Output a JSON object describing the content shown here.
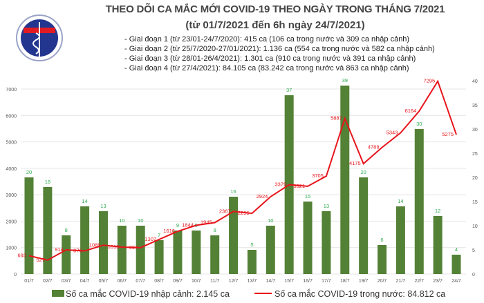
{
  "header": {
    "title": "THEO DÕI CA MẮC MỚI COVID-19 THEO NGÀY TRONG THÁNG 7/2021",
    "subtitle": "(từ 01/7/2021 đến 6h ngày 24/7/2021)",
    "notes": [
      "- Giai đoạn 1 (từ 23/01-24/7/2020): 415 ca (106 ca trong nước và 309 ca nhập cảnh)",
      "- Giai đoạn 2 (từ 25/7/2020-27/01/2021): 1.136 ca (554 ca trong nước và 582 ca nhập cảnh)",
      "- Giai đoạn 3 (từ 28/01-26/4/2021): 1.301 ca (910 ca trong nước và 391 ca nhập cảnh)",
      "- Giai đoạn 4 (từ 27/4/2021): 84.105 ca (83.242 ca trong nước và 863 ca nhập cảnh)"
    ],
    "logo_text": "BỘ Y TẾ - MINISTRY OF HEALTH"
  },
  "chart_data": {
    "type": "bar+line",
    "categories": [
      "01/7",
      "02/7",
      "03/7",
      "04/7",
      "05/7",
      "06/7",
      "07/7",
      "08/7",
      "09/7",
      "10/7",
      "11/7",
      "12/7",
      "13/7",
      "14/7",
      "15/7",
      "16/7",
      "17/7",
      "18/7",
      "19/7",
      "20/7",
      "21/7",
      "22/7",
      "23/7",
      "24/7"
    ],
    "series": [
      {
        "name": "Số ca mắc COVID-19 nhập cảnh: 2.145 ca",
        "type": "bar",
        "axis": "right",
        "color": "#538135",
        "values": [
          20,
          18,
          8,
          14,
          13,
          10,
          10,
          7,
          9,
          9,
          8,
          16,
          5,
          10,
          37,
          15,
          13,
          39,
          20,
          6,
          14,
          30,
          12,
          4
        ]
      },
      {
        "name": "Số ca mắc COVID-19 trong nước: 84.812 ca",
        "type": "line",
        "axis": "left",
        "color": "#e8141b",
        "values": [
          693,
          527,
          914,
          876,
          1089,
          1019,
          997,
          1307,
          1616,
          1844,
          1945,
          2367,
          2296,
          2924,
          3379,
          3321,
          3705,
          5887,
          4175,
          4789,
          5343,
          6164,
          7295,
          5275
        ]
      }
    ],
    "left_axis": {
      "range": [
        0,
        7000
      ],
      "ticks": [
        0,
        1000,
        2000,
        3000,
        4000,
        5000,
        6000,
        7000
      ]
    },
    "right_axis": {
      "range": [
        0,
        40
      ],
      "ticks": [
        0,
        5,
        10,
        15,
        20,
        25,
        30,
        35,
        40
      ]
    },
    "grid": true,
    "legend": "bottom",
    "label_colors": {
      "bar": "#2ea84f",
      "line": "#e8141b"
    }
  }
}
